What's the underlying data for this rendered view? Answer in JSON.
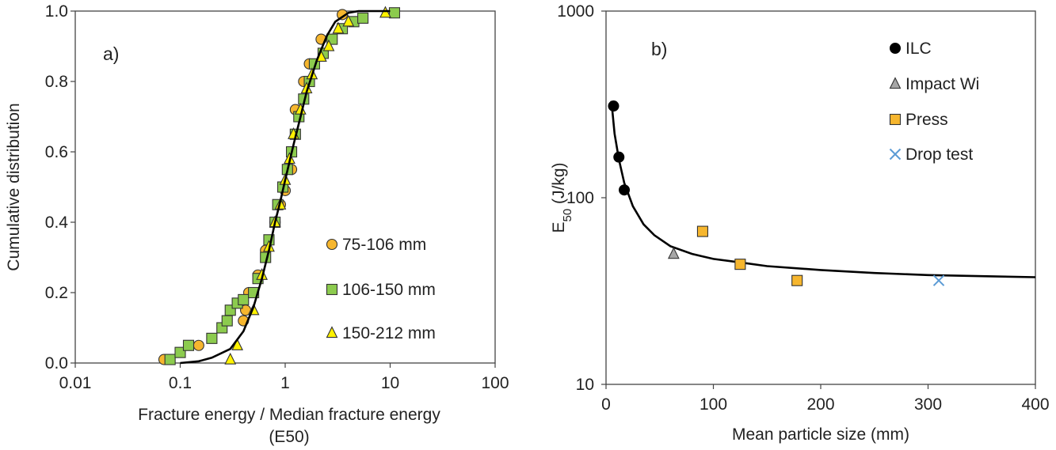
{
  "chart_data": [
    {
      "type": "scatter",
      "panel_label": "a)",
      "xlabel_line1": "Fracture energy / Median fracture energy",
      "xlabel_line2": "(E50)",
      "ylabel": "Cumulative distribution",
      "xscale": "log",
      "xlim": [
        0.01,
        100
      ],
      "ylim": [
        0,
        1
      ],
      "x_ticks": [
        0.01,
        0.1,
        1,
        10,
        100
      ],
      "x_tick_labels": [
        "0.01",
        "0.1",
        "1",
        "10",
        "100"
      ],
      "y_ticks": [
        0,
        0.2,
        0.4,
        0.6,
        0.8,
        1.0
      ],
      "y_tick_labels": [
        "0.0",
        "0.2",
        "0.4",
        "0.6",
        "0.8",
        "1.0"
      ],
      "legend_position": "lower-right",
      "series": [
        {
          "name": "75-106 mm",
          "marker": "circle",
          "color": "#F6B62E",
          "points": [
            [
              0.07,
              0.01
            ],
            [
              0.15,
              0.05
            ],
            [
              0.4,
              0.12
            ],
            [
              0.42,
              0.15
            ],
            [
              0.45,
              0.2
            ],
            [
              0.55,
              0.25
            ],
            [
              0.65,
              0.32
            ],
            [
              0.8,
              0.4
            ],
            [
              0.9,
              0.45
            ],
            [
              1.0,
              0.49
            ],
            [
              1.15,
              0.55
            ],
            [
              1.25,
              0.72
            ],
            [
              1.5,
              0.8
            ],
            [
              1.7,
              0.85
            ],
            [
              2.2,
              0.92
            ],
            [
              3.5,
              0.99
            ]
          ]
        },
        {
          "name": "106-150 mm",
          "marker": "square",
          "color": "#8CCB4E",
          "points": [
            [
              0.08,
              0.01
            ],
            [
              0.1,
              0.03
            ],
            [
              0.12,
              0.05
            ],
            [
              0.2,
              0.07
            ],
            [
              0.25,
              0.1
            ],
            [
              0.28,
              0.12
            ],
            [
              0.3,
              0.15
            ],
            [
              0.35,
              0.17
            ],
            [
              0.4,
              0.18
            ],
            [
              0.5,
              0.2
            ],
            [
              0.55,
              0.24
            ],
            [
              0.65,
              0.3
            ],
            [
              0.7,
              0.35
            ],
            [
              0.8,
              0.4
            ],
            [
              0.85,
              0.45
            ],
            [
              0.95,
              0.5
            ],
            [
              1.05,
              0.55
            ],
            [
              1.15,
              0.6
            ],
            [
              1.25,
              0.65
            ],
            [
              1.35,
              0.7
            ],
            [
              1.5,
              0.75
            ],
            [
              1.7,
              0.8
            ],
            [
              1.9,
              0.85
            ],
            [
              2.3,
              0.88
            ],
            [
              2.8,
              0.92
            ],
            [
              3.5,
              0.95
            ],
            [
              4.5,
              0.97
            ],
            [
              5.5,
              0.98
            ],
            [
              11,
              0.995
            ]
          ]
        },
        {
          "name": "150-212 mm",
          "marker": "triangle",
          "color": "#FFF200",
          "points": [
            [
              0.3,
              0.01
            ],
            [
              0.35,
              0.05
            ],
            [
              0.5,
              0.15
            ],
            [
              0.6,
              0.25
            ],
            [
              0.7,
              0.33
            ],
            [
              0.8,
              0.4
            ],
            [
              0.9,
              0.45
            ],
            [
              1.0,
              0.52
            ],
            [
              1.1,
              0.58
            ],
            [
              1.2,
              0.65
            ],
            [
              1.4,
              0.72
            ],
            [
              1.6,
              0.78
            ],
            [
              1.8,
              0.82
            ],
            [
              2.2,
              0.87
            ],
            [
              2.6,
              0.9
            ],
            [
              3.2,
              0.95
            ],
            [
              4,
              0.97
            ],
            [
              9,
              0.995
            ]
          ]
        }
      ],
      "fit_curve": {
        "color": "#000000",
        "points": [
          [
            0.1,
            0.0
          ],
          [
            0.15,
            0.005
          ],
          [
            0.2,
            0.015
          ],
          [
            0.3,
            0.04
          ],
          [
            0.4,
            0.09
          ],
          [
            0.5,
            0.16
          ],
          [
            0.6,
            0.24
          ],
          [
            0.7,
            0.32
          ],
          [
            0.8,
            0.4
          ],
          [
            0.9,
            0.46
          ],
          [
            1.0,
            0.52
          ],
          [
            1.2,
            0.62
          ],
          [
            1.4,
            0.7
          ],
          [
            1.6,
            0.77
          ],
          [
            2.0,
            0.86
          ],
          [
            2.5,
            0.93
          ],
          [
            3.0,
            0.97
          ],
          [
            4.0,
            0.995
          ],
          [
            5.0,
            1.0
          ],
          [
            10,
            1.0
          ]
        ]
      }
    },
    {
      "type": "scatter",
      "panel_label": "b)",
      "xlabel": "Mean particle size (mm)",
      "ylabel_main": "E",
      "ylabel_sub": "50",
      "ylabel_unit": " (J/kg)",
      "yscale": "log",
      "xlim": [
        0,
        400
      ],
      "ylim": [
        10,
        1000
      ],
      "x_ticks": [
        0,
        100,
        200,
        300,
        400
      ],
      "x_tick_labels": [
        "0",
        "100",
        "200",
        "300",
        "400"
      ],
      "y_ticks": [
        10,
        100,
        1000
      ],
      "y_tick_labels": [
        "10",
        "100",
        "1000"
      ],
      "legend_position": "top-right",
      "series": [
        {
          "name": "ILC",
          "marker": "circle",
          "color": "#000000",
          "points": [
            [
              7,
              310
            ],
            [
              12,
              165
            ],
            [
              17,
              110
            ]
          ]
        },
        {
          "name": "Impact Wi",
          "marker": "triangle",
          "color": "#A6A6A6",
          "points": [
            [
              63,
              50
            ]
          ]
        },
        {
          "name": "Press",
          "marker": "square",
          "color": "#F6B62E",
          "points": [
            [
              90,
              66
            ],
            [
              125,
              44
            ],
            [
              178,
              36
            ]
          ]
        },
        {
          "name": "Drop test",
          "marker": "x",
          "color": "#5B9BD5",
          "points": [
            [
              310,
              36
            ]
          ]
        }
      ],
      "fit_curve": {
        "color": "#000000",
        "points": [
          [
            5,
            330
          ],
          [
            8,
            220
          ],
          [
            12,
            160
          ],
          [
            17,
            120
          ],
          [
            25,
            90
          ],
          [
            35,
            72
          ],
          [
            45,
            63
          ],
          [
            60,
            55
          ],
          [
            80,
            50
          ],
          [
            100,
            47
          ],
          [
            125,
            45
          ],
          [
            150,
            43
          ],
          [
            200,
            41
          ],
          [
            250,
            39.5
          ],
          [
            300,
            38.5
          ],
          [
            350,
            38
          ],
          [
            400,
            37.5
          ]
        ]
      }
    }
  ]
}
